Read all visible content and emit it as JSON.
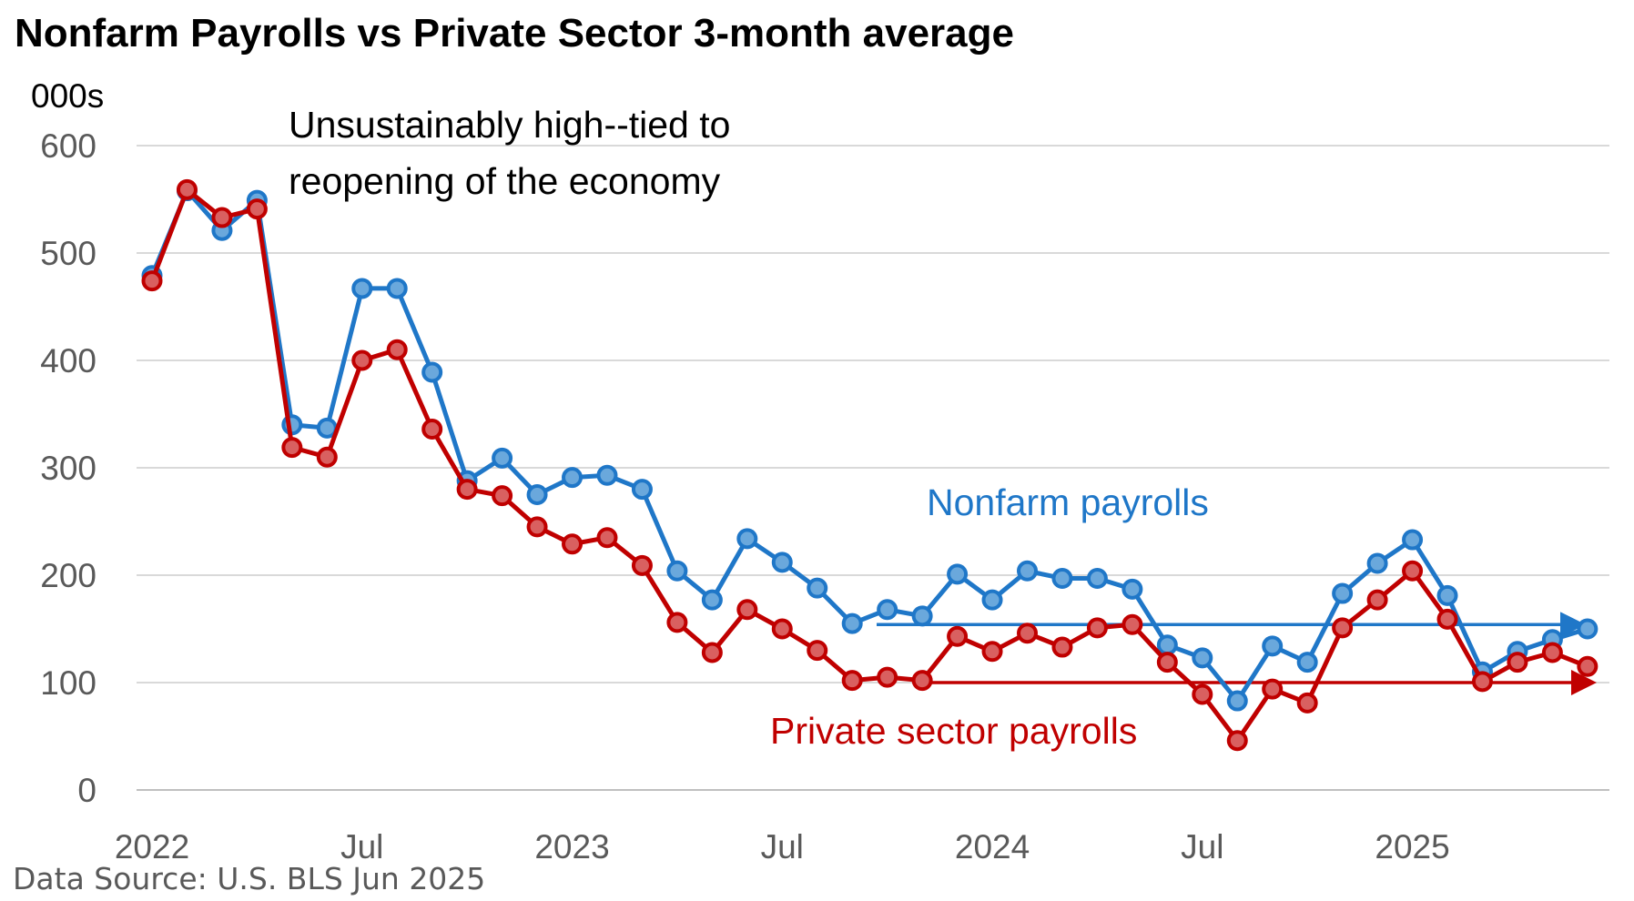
{
  "chart_data": {
    "type": "line",
    "title": "Nonfarm Payrolls vs Private Sector 3-month  average",
    "ylabel": "000s",
    "ylim": [
      0,
      600
    ],
    "yticks": [
      0,
      100,
      200,
      300,
      400,
      500,
      600
    ],
    "grid": true,
    "x_tick_labels": [
      "2022",
      "Jul",
      "2023",
      "Jul",
      "2024",
      "Jul",
      "2025"
    ],
    "x_start": "2022-01",
    "x_end": "2025-06",
    "series": [
      {
        "name": "Nonfarm payrolls",
        "color": "#1F77C8",
        "values": [
          479,
          558,
          521,
          549,
          340,
          337,
          467,
          467,
          389,
          288,
          309,
          275,
          291,
          293,
          280,
          204,
          177,
          234,
          212,
          188,
          155,
          168,
          162,
          201,
          177,
          204,
          197,
          197,
          187,
          135,
          123,
          83,
          134,
          119,
          183,
          211,
          233,
          181,
          110,
          129,
          140,
          150
        ]
      },
      {
        "name": "Private sector payrolls",
        "color": "#C00000",
        "values": [
          474,
          559,
          533,
          541,
          319,
          310,
          400,
          410,
          336,
          280,
          274,
          245,
          229,
          235,
          209,
          156,
          128,
          168,
          150,
          130,
          102,
          105,
          102,
          143,
          129,
          146,
          133,
          151,
          154,
          119,
          89,
          46,
          94,
          81,
          151,
          177,
          204,
          159,
          101,
          119,
          128,
          115
        ]
      }
    ],
    "annotations": {
      "note_line1": "Unsustainably high--tied to",
      "note_line2": "reopening of the economy",
      "nonfarm_label": "Nonfarm payrolls",
      "private_label": "Private sector payrolls",
      "nonfarm_trend_value": 154,
      "private_trend_value": 100
    }
  },
  "source": "Data Source: U.S. BLS Jun 2025"
}
